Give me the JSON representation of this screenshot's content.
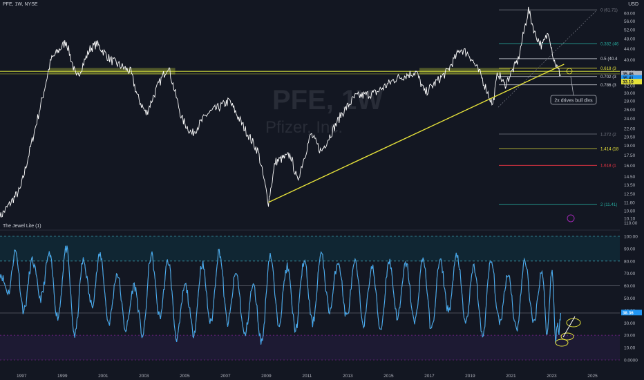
{
  "header": {
    "symbol_line": "PFE, 1W, NYSE",
    "currency": "USD"
  },
  "watermark": {
    "ticker": "PFE, 1W",
    "name": "Pfizer, Inc."
  },
  "indicator": {
    "label": "The Jewel Lite (1)"
  },
  "annotation": {
    "text": "2x drives bull divs"
  },
  "colors": {
    "background": "#131722",
    "price": "#ffffff",
    "trendline": "#e6e23a",
    "zone": "#c6d13a",
    "oscillator": "#2196f3",
    "oscillator_light": "#9be3ff",
    "fib_0382": "#26a69a",
    "fib_1414": "#e6e23a",
    "fib_1618": "#f23645",
    "fib_2": "#26a69a"
  },
  "chart_data": [
    {
      "type": "line",
      "title": "PFE, 1W, NYSE",
      "y_scale": "log",
      "x_ticks": [
        "1997",
        "1999",
        "2001",
        "2003",
        "2005",
        "2007",
        "2009",
        "2011",
        "2013",
        "2015",
        "2017",
        "2019",
        "2021",
        "2023",
        "2025"
      ],
      "y_ticks": [
        "60.00",
        "56.00",
        "52.00",
        "48.00",
        "44.00",
        "40.00",
        "36.00",
        "34.00",
        "32.00",
        "30.00",
        "28.00",
        "26.00",
        "24.00",
        "22.00",
        "20.50",
        "19.00",
        "17.50",
        "16.00",
        "14.50",
        "13.50",
        "12.50",
        "11.60",
        "10.80",
        "10.10"
      ],
      "series": [
        {
          "values": [
            [
              "1996-01",
              10.2
            ],
            [
              "1997-01",
              13.0
            ],
            [
              "1998-01",
              27.0
            ],
            [
              "1998-07",
              40.0
            ],
            [
              "1999-04",
              47.0
            ],
            [
              "1999-10",
              34.0
            ],
            [
              "2000-06",
              44.0
            ],
            [
              "2000-10",
              46.0
            ],
            [
              "2001-06",
              40.0
            ],
            [
              "2002-06",
              36.0
            ],
            [
              "2002-10",
              29.0
            ],
            [
              "2003-03",
              25.0
            ],
            [
              "2003-10",
              32.0
            ],
            [
              "2004-04",
              38.0
            ],
            [
              "2004-12",
              24.0
            ],
            [
              "2005-06",
              21.0
            ],
            [
              "2006-03",
              25.0
            ],
            [
              "2006-12",
              27.0
            ],
            [
              "2007-04",
              28.0
            ],
            [
              "2008-01",
              22.0
            ],
            [
              "2008-09",
              18.0
            ],
            [
              "2009-03",
              11.6
            ],
            [
              "2009-07",
              16.5
            ],
            [
              "2010-04",
              17.5
            ],
            [
              "2010-08",
              14.0
            ],
            [
              "2011-04",
              21.0
            ],
            [
              "2011-10",
              18.0
            ],
            [
              "2012-10",
              25.0
            ],
            [
              "2013-06",
              29.0
            ],
            [
              "2014-06",
              30.0
            ],
            [
              "2015-06",
              34.0
            ],
            [
              "2016-06",
              36.0
            ],
            [
              "2016-11",
              30.0
            ],
            [
              "2017-12",
              36.0
            ],
            [
              "2018-08",
              44.0
            ],
            [
              "2019-01",
              42.0
            ],
            [
              "2019-08",
              35.0
            ],
            [
              "2020-03",
              27.0
            ],
            [
              "2020-06",
              36.0
            ],
            [
              "2020-10",
              32.0
            ],
            [
              "2021-06",
              40.0
            ],
            [
              "2021-12",
              61.7
            ],
            [
              "2022-04",
              50.0
            ],
            [
              "2022-08",
              45.0
            ],
            [
              "2022-12",
              51.0
            ],
            [
              "2023-03",
              40.0
            ],
            [
              "2023-06",
              36.0
            ],
            [
              "2023-07",
              35.2
            ]
          ]
        }
      ],
      "trendline": {
        "from": [
          "2009-03",
          11.6
        ],
        "to": [
          "2023-09",
          38.5
        ]
      },
      "supply_zone": {
        "low": 35.3,
        "high": 37.2,
        "segments": [
          [
            "1998-06",
            "2004-08"
          ],
          [
            "2016-08",
            "2021-01"
          ]
        ]
      },
      "fib_levels": [
        {
          "ratio": "0",
          "label": "0 (61.71)",
          "price": 61.71
        },
        {
          "ratio": "0.382",
          "label": "0.382 (46",
          "price": 46.0
        },
        {
          "ratio": "0.5",
          "label": "0.5 (40.4",
          "price": 40.4
        },
        {
          "ratio": "0.618",
          "label": "0.618 (3",
          "price": 37.2
        },
        {
          "ratio": "0.702",
          "label": "0.702 (3",
          "price": 34.6
        },
        {
          "ratio": "0.786",
          "label": "0.786 (3",
          "price": 32.2
        },
        {
          "ratio": "1.272",
          "label": "1.272 (2",
          "price": 21.0
        },
        {
          "ratio": "1.414",
          "label": "1.414 (18",
          "price": 18.5
        },
        {
          "ratio": "1.618",
          "label": "1.618 (1",
          "price": 16.0
        },
        {
          "ratio": "2",
          "label": "2 (11.41)",
          "price": 11.41
        }
      ],
      "price_tags": [
        {
          "label": "35.46",
          "price": 35.46,
          "color": "#b2b5be"
        },
        {
          "label": "35.41",
          "price": 34.2,
          "color": "#2196f3"
        },
        {
          "label": "33.10",
          "price": 33.1,
          "color": "#e6e23a"
        }
      ]
    },
    {
      "type": "line",
      "title": "The Jewel Lite (1)",
      "y_ticks": [
        "100.00",
        "90.00",
        "80.00",
        "70.00",
        "60.00",
        "50.00",
        "40.00",
        "30.00",
        "20.00",
        "10.00",
        "0.0000"
      ],
      "bands": {
        "overbought": 80,
        "oversold": 20,
        "upper": 100,
        "lower": 0
      },
      "last_value": "38.36",
      "series": [
        {
          "name": "",
          "values": [
            [
              "1996-01",
              70
            ],
            [
              "1996-06",
              55
            ],
            [
              "1996-10",
              88
            ],
            [
              "1997-03",
              40
            ],
            [
              "1997-08",
              80
            ],
            [
              "1998-01",
              50
            ],
            [
              "1998-06",
              85
            ],
            [
              "1998-11",
              35
            ],
            [
              "1999-04",
              90
            ],
            [
              "1999-09",
              20
            ],
            [
              "2000-02",
              80
            ],
            [
              "2000-07",
              45
            ],
            [
              "2000-12",
              85
            ],
            [
              "2001-05",
              30
            ],
            [
              "2001-10",
              70
            ],
            [
              "2002-03",
              25
            ],
            [
              "2002-08",
              60
            ],
            [
              "2003-01",
              20
            ],
            [
              "2003-06",
              85
            ],
            [
              "2003-11",
              35
            ],
            [
              "2004-04",
              80
            ],
            [
              "2004-09",
              18
            ],
            [
              "2005-02",
              60
            ],
            [
              "2005-07",
              22
            ],
            [
              "2005-12",
              78
            ],
            [
              "2006-05",
              30
            ],
            [
              "2006-10",
              88
            ],
            [
              "2007-03",
              30
            ],
            [
              "2007-08",
              70
            ],
            [
              "2008-01",
              20
            ],
            [
              "2008-06",
              60
            ],
            [
              "2008-11",
              15
            ],
            [
              "2009-04",
              85
            ],
            [
              "2009-09",
              30
            ],
            [
              "2010-02",
              75
            ],
            [
              "2010-07",
              25
            ],
            [
              "2010-12",
              80
            ],
            [
              "2011-05",
              30
            ],
            [
              "2011-10",
              85
            ],
            [
              "2012-03",
              40
            ],
            [
              "2012-08",
              80
            ],
            [
              "2013-01",
              35
            ],
            [
              "2013-06",
              78
            ],
            [
              "2013-11",
              30
            ],
            [
              "2014-04",
              75
            ],
            [
              "2014-09",
              25
            ],
            [
              "2015-02",
              80
            ],
            [
              "2015-07",
              35
            ],
            [
              "2015-12",
              78
            ],
            [
              "2016-05",
              30
            ],
            [
              "2016-10",
              82
            ],
            [
              "2017-03",
              25
            ],
            [
              "2017-08",
              80
            ],
            [
              "2018-01",
              40
            ],
            [
              "2018-06",
              85
            ],
            [
              "2018-11",
              30
            ],
            [
              "2019-04",
              75
            ],
            [
              "2019-09",
              20
            ],
            [
              "2020-02",
              80
            ],
            [
              "2020-07",
              30
            ],
            [
              "2020-12",
              70
            ],
            [
              "2021-05",
              25
            ],
            [
              "2021-10",
              80
            ],
            [
              "2022-03",
              30
            ],
            [
              "2022-08",
              72
            ],
            [
              "2022-11",
              22
            ],
            [
              "2023-02",
              75
            ],
            [
              "2023-04",
              15
            ],
            [
              "2023-05",
              30
            ],
            [
              "2023-06",
              22
            ],
            [
              "2023-07",
              38
            ]
          ]
        }
      ]
    }
  ]
}
